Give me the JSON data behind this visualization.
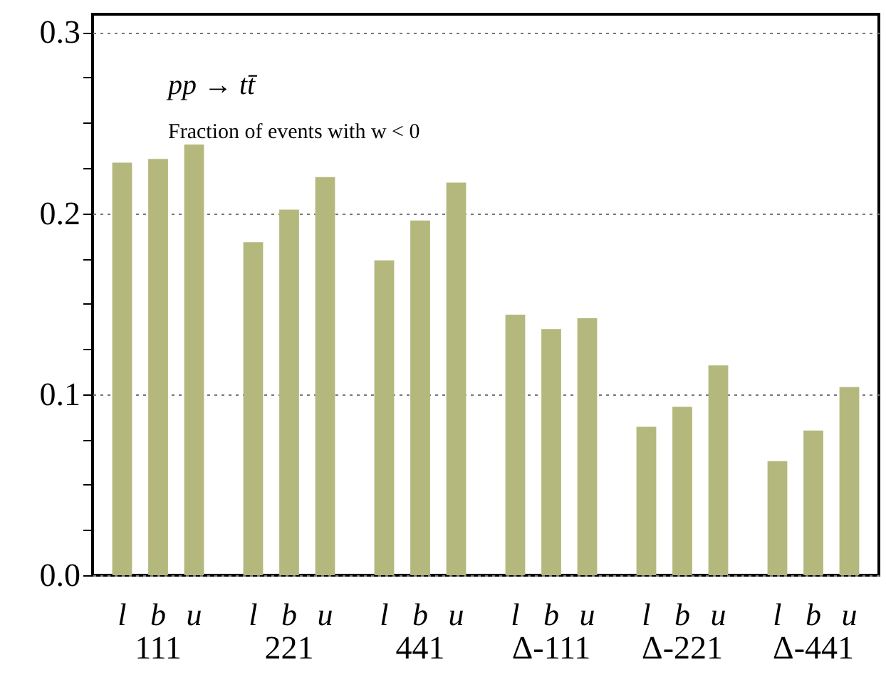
{
  "chart_data": {
    "type": "bar",
    "categories": [
      "111",
      "221",
      "441",
      "Δ-111",
      "Δ-221",
      "Δ-441"
    ],
    "series": [
      {
        "name": "l",
        "color": "#b5b87d",
        "values": [
          0.228,
          0.184,
          0.174,
          0.144,
          0.082,
          0.063
        ]
      },
      {
        "name": "b",
        "color": "#b5b87d",
        "values": [
          0.23,
          0.202,
          0.196,
          0.136,
          0.093,
          0.08
        ]
      },
      {
        "name": "u",
        "color": "#b5b87d",
        "values": [
          0.238,
          0.22,
          0.217,
          0.142,
          0.116,
          0.104
        ]
      }
    ],
    "ylim": [
      0,
      0.31
    ],
    "yticks": [
      {
        "value": 0,
        "label": "0.0"
      },
      {
        "value": 0.025,
        "label": null
      },
      {
        "value": 0.05,
        "label": null
      },
      {
        "value": 0.075,
        "label": null
      },
      {
        "value": 0.1,
        "label": "0.1"
      },
      {
        "value": 0.125,
        "label": null
      },
      {
        "value": 0.15,
        "label": null
      },
      {
        "value": 0.175,
        "label": null
      },
      {
        "value": 0.2,
        "label": "0.2"
      },
      {
        "value": 0.225,
        "label": null
      },
      {
        "value": 0.25,
        "label": null
      },
      {
        "value": 0.275,
        "label": null
      },
      {
        "value": 0.3,
        "label": "0.3"
      }
    ],
    "annotations": [
      "pp → tt̄",
      "Fraction of events with w < 0"
    ],
    "grid": "y"
  }
}
